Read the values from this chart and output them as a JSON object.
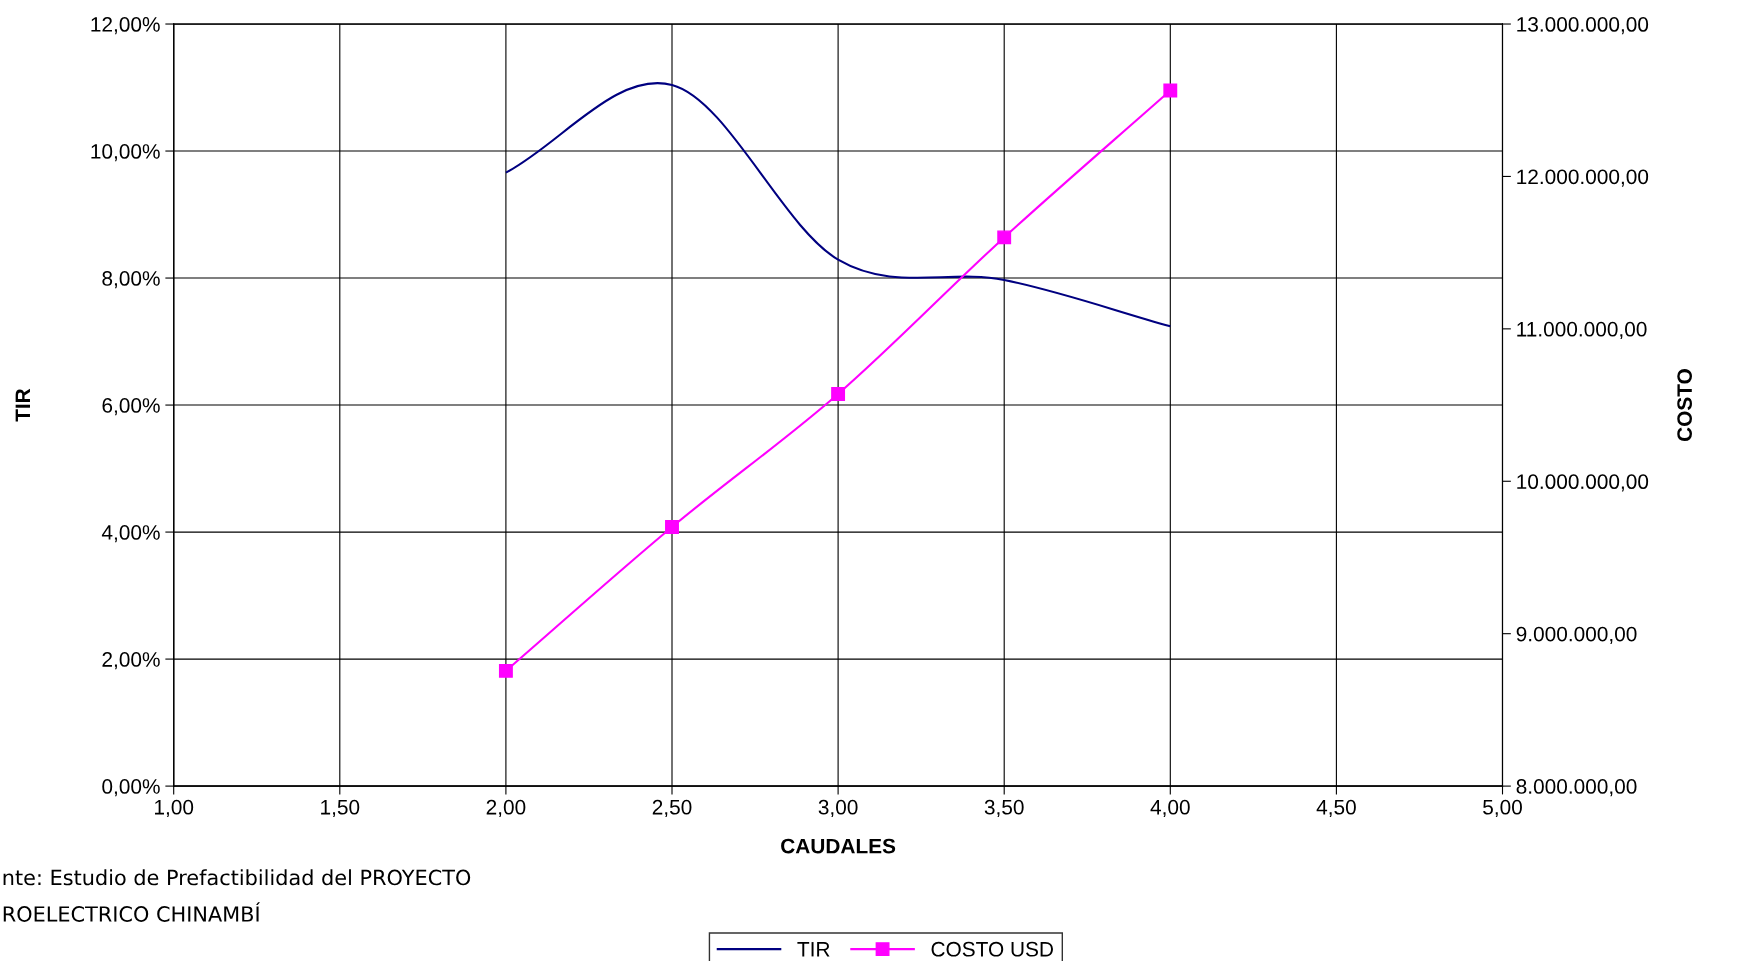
{
  "chart_data": {
    "type": "line",
    "xlabel": "CAUDALES",
    "ylabel": "TIR",
    "y2label": "COSTO",
    "x": [
      2.0,
      2.5,
      3.0,
      3.5,
      4.0
    ],
    "series": [
      {
        "name": "TIR",
        "color": "#000080",
        "values": [
          9.66,
          11.04,
          8.29,
          7.97,
          7.24
        ],
        "marker": "none"
      },
      {
        "name": "COSTO USD",
        "color": "#ff00ff",
        "values": [
          8756000,
          9700000,
          10573000,
          11600000,
          12564000
        ],
        "axis": "y2",
        "marker": "square"
      }
    ],
    "xlim": [
      1,
      5
    ],
    "xticks": [
      {
        "value": 1,
        "label": "1,00"
      },
      {
        "value": 1.5,
        "label": "1,50"
      },
      {
        "value": 2,
        "label": "2,00"
      },
      {
        "value": 2.5,
        "label": "2,50"
      },
      {
        "value": 3,
        "label": "3,00"
      },
      {
        "value": 3.5,
        "label": "3,50"
      },
      {
        "value": 4,
        "label": "4,00"
      },
      {
        "value": 4.5,
        "label": "4,50"
      },
      {
        "value": 5,
        "label": "5,00"
      }
    ],
    "ylim": [
      0,
      12
    ],
    "yticks": [
      {
        "value": 0,
        "label": "0,00%"
      },
      {
        "value": 2,
        "label": "2,00%"
      },
      {
        "value": 4,
        "label": "4,00%"
      },
      {
        "value": 6,
        "label": "6,00%"
      },
      {
        "value": 8,
        "label": "8,00%"
      },
      {
        "value": 10,
        "label": "10,00%"
      },
      {
        "value": 12,
        "label": "12,00%"
      }
    ],
    "y2lim": [
      8000000,
      13000000
    ],
    "y2ticks": [
      {
        "value": 8000000,
        "label": "8.000.000,00"
      },
      {
        "value": 9000000,
        "label": "9.000.000,00"
      },
      {
        "value": 10000000,
        "label": "10.000.000,00"
      },
      {
        "value": 11000000,
        "label": "11.000.000,00"
      },
      {
        "value": 12000000,
        "label": "12.000.000,00"
      },
      {
        "value": 13000000,
        "label": "13.000.000,00"
      }
    ],
    "grid": true,
    "legend": "bottom",
    "line_style": "solid",
    "annotations": [
      "nte: Estudio de Prefactibilidad del PROYECTO",
      "ROELECTRICO CHINAMBÍ"
    ]
  }
}
